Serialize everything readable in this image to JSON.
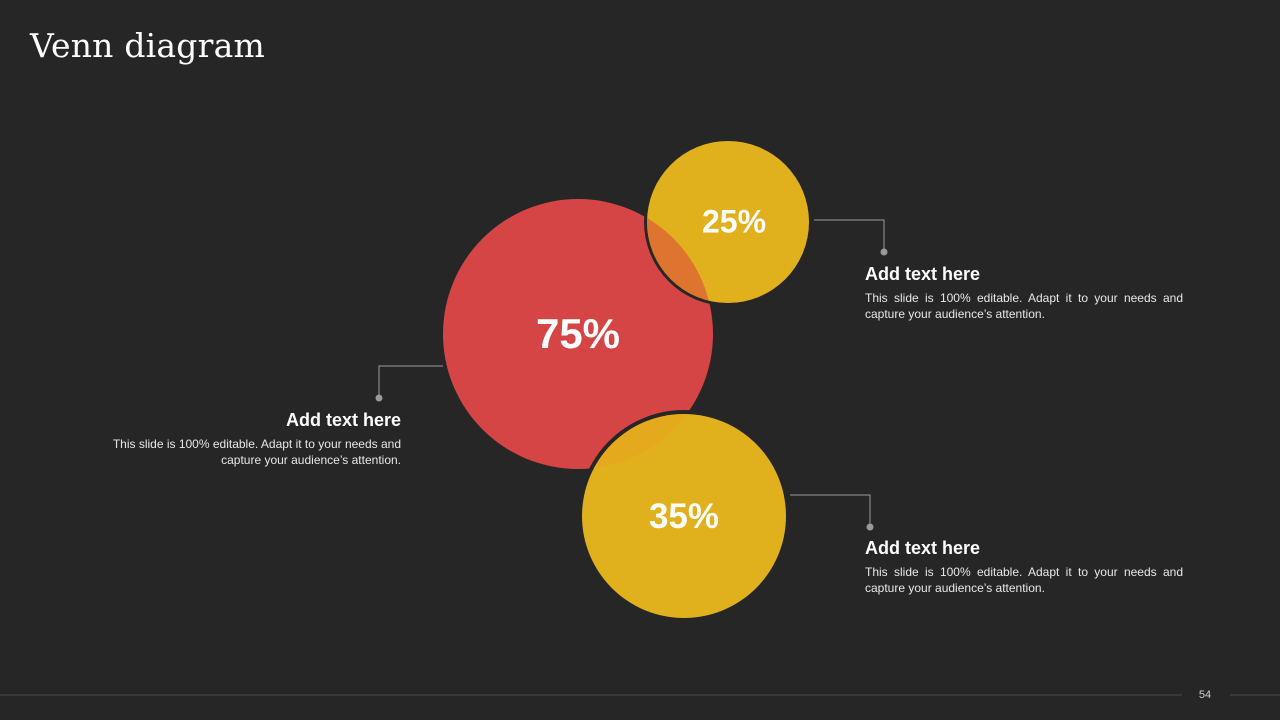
{
  "slide": {
    "title": "Venn diagram",
    "page_number": "54"
  },
  "circles": [
    {
      "label": "75%",
      "value": 75,
      "color": "#D64545"
    },
    {
      "label": "25%",
      "value": 25,
      "color": "#E1B11D"
    },
    {
      "label": "35%",
      "value": 35,
      "color": "#E1B11D"
    }
  ],
  "callouts": [
    {
      "heading": "Add text here",
      "body": "This slide is 100% editable. Adapt it to your needs and capture your audience’s attention."
    },
    {
      "heading": "Add text here",
      "body": "This slide is 100% editable. Adapt it to your needs and capture your audience’s attention."
    },
    {
      "heading": "Add text here",
      "body": "This slide is 100% editable. Adapt it to your needs and capture your audience’s attention."
    }
  ],
  "colors": {
    "background": "#262626",
    "connector": "#9a9a9a",
    "footer_line": "#4a4a4a"
  }
}
